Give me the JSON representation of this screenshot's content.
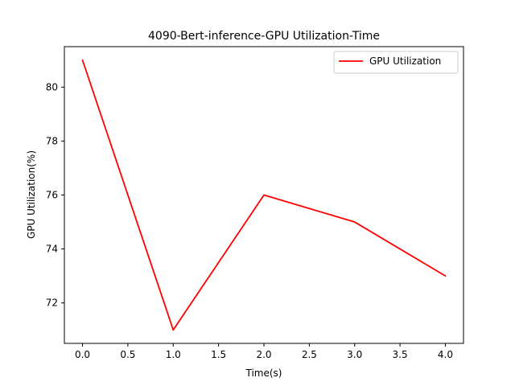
{
  "chart_data": {
    "type": "line",
    "title": "4090-Bert-inference-GPU Utilization-Time",
    "xlabel": "Time(s)",
    "ylabel": "GPU Utilization(%)",
    "x": [
      0,
      1,
      2,
      3,
      4
    ],
    "series": [
      {
        "name": "GPU Utilization",
        "values": [
          81,
          71,
          76,
          75,
          73
        ],
        "color": "#ff0000"
      }
    ],
    "xlim": [
      -0.2,
      4.2
    ],
    "ylim": [
      70.5,
      81.5
    ],
    "xticks": [
      "0.0",
      "0.5",
      "1.0",
      "1.5",
      "2.0",
      "2.5",
      "3.0",
      "3.5",
      "4.0"
    ],
    "yticks": [
      "72",
      "74",
      "76",
      "78",
      "80"
    ],
    "grid": false,
    "legend_position": "top-right"
  }
}
